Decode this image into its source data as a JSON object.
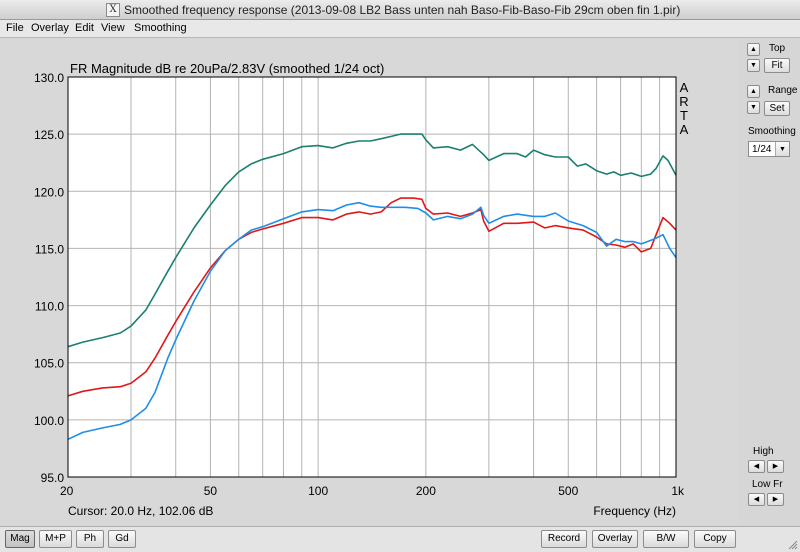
{
  "window": {
    "title": "Smoothed frequency response (2013-09-08 LB2 Bass unten nah Baso-Fib-Baso-Fib 29cm oben fin 1.pir)"
  },
  "menu": {
    "file": "File",
    "overlay": "Overlay",
    "edit": "Edit",
    "view": "View",
    "smoothing": "Smoothing"
  },
  "chart": {
    "title": "FR Magnitude dB re 20uPa/2.83V (smoothed 1/24 oct)",
    "watermark": [
      "A",
      "R",
      "T",
      "A"
    ],
    "cursor": "Cursor: 20.0 Hz, 102.06 dB",
    "xlabel": "Frequency (Hz)"
  },
  "chart_data": {
    "type": "line",
    "xscale": "log",
    "xlim": [
      20,
      1000
    ],
    "ylim": [
      95,
      130
    ],
    "xticks": [
      20,
      50,
      100,
      200,
      500,
      1000
    ],
    "xtick_labels": [
      "20",
      "50",
      "100",
      "200",
      "500",
      "1k"
    ],
    "yticks": [
      95,
      100,
      105,
      110,
      115,
      120,
      125,
      130
    ],
    "ytick_labels": [
      "95.0",
      "100.0",
      "105.0",
      "110.0",
      "115.0",
      "120.0",
      "125.0",
      "130.0"
    ],
    "grid": true,
    "background": "#ffffff",
    "series": [
      {
        "color": "#1a8070",
        "points": [
          [
            20,
            106.4
          ],
          [
            22,
            106.8
          ],
          [
            25,
            107.2
          ],
          [
            28,
            107.6
          ],
          [
            30,
            108.2
          ],
          [
            33,
            109.6
          ],
          [
            35,
            111.0
          ],
          [
            38,
            113.0
          ],
          [
            40,
            114.2
          ],
          [
            45,
            116.8
          ],
          [
            50,
            118.8
          ],
          [
            55,
            120.5
          ],
          [
            60,
            121.7
          ],
          [
            65,
            122.4
          ],
          [
            70,
            122.8
          ],
          [
            80,
            123.3
          ],
          [
            90,
            123.9
          ],
          [
            100,
            124.0
          ],
          [
            110,
            123.8
          ],
          [
            120,
            124.2
          ],
          [
            130,
            124.4
          ],
          [
            140,
            124.4
          ],
          [
            150,
            124.6
          ],
          [
            160,
            124.8
          ],
          [
            170,
            125.0
          ],
          [
            180,
            125.0
          ],
          [
            195,
            125.0
          ],
          [
            200,
            124.5
          ],
          [
            210,
            123.8
          ],
          [
            230,
            123.9
          ],
          [
            250,
            123.6
          ],
          [
            270,
            124.1
          ],
          [
            290,
            123.2
          ],
          [
            300,
            122.7
          ],
          [
            330,
            123.3
          ],
          [
            360,
            123.3
          ],
          [
            380,
            123.0
          ],
          [
            400,
            123.6
          ],
          [
            430,
            123.2
          ],
          [
            460,
            123.0
          ],
          [
            500,
            123.0
          ],
          [
            530,
            122.2
          ],
          [
            560,
            122.4
          ],
          [
            600,
            121.8
          ],
          [
            640,
            121.5
          ],
          [
            670,
            121.7
          ],
          [
            700,
            121.4
          ],
          [
            750,
            121.6
          ],
          [
            800,
            121.3
          ],
          [
            850,
            121.5
          ],
          [
            880,
            122.0
          ],
          [
            920,
            123.1
          ],
          [
            950,
            122.7
          ],
          [
            1000,
            121.4
          ]
        ]
      },
      {
        "color": "#e01818",
        "points": [
          [
            20,
            102.1
          ],
          [
            22,
            102.5
          ],
          [
            25,
            102.8
          ],
          [
            28,
            102.9
          ],
          [
            30,
            103.2
          ],
          [
            33,
            104.2
          ],
          [
            35,
            105.4
          ],
          [
            38,
            107.4
          ],
          [
            40,
            108.6
          ],
          [
            45,
            111.2
          ],
          [
            50,
            113.3
          ],
          [
            55,
            114.8
          ],
          [
            60,
            115.8
          ],
          [
            65,
            116.4
          ],
          [
            70,
            116.7
          ],
          [
            80,
            117.2
          ],
          [
            90,
            117.7
          ],
          [
            100,
            117.7
          ],
          [
            110,
            117.5
          ],
          [
            120,
            118.0
          ],
          [
            130,
            118.2
          ],
          [
            140,
            118.0
          ],
          [
            150,
            118.2
          ],
          [
            160,
            119.0
          ],
          [
            170,
            119.4
          ],
          [
            185,
            119.4
          ],
          [
            195,
            119.3
          ],
          [
            200,
            118.5
          ],
          [
            210,
            118.0
          ],
          [
            230,
            118.1
          ],
          [
            250,
            117.8
          ],
          [
            270,
            118.1
          ],
          [
            285,
            118.4
          ],
          [
            290,
            117.4
          ],
          [
            300,
            116.5
          ],
          [
            330,
            117.2
          ],
          [
            360,
            117.2
          ],
          [
            400,
            117.3
          ],
          [
            430,
            116.8
          ],
          [
            460,
            117.0
          ],
          [
            500,
            116.8
          ],
          [
            550,
            116.6
          ],
          [
            600,
            116.0
          ],
          [
            640,
            115.4
          ],
          [
            680,
            115.3
          ],
          [
            720,
            115.1
          ],
          [
            760,
            115.4
          ],
          [
            800,
            114.7
          ],
          [
            850,
            115.0
          ],
          [
            880,
            116.2
          ],
          [
            920,
            117.7
          ],
          [
            960,
            117.2
          ],
          [
            1000,
            116.6
          ]
        ]
      },
      {
        "color": "#1e8ee8",
        "points": [
          [
            20,
            98.3
          ],
          [
            22,
            98.9
          ],
          [
            25,
            99.3
          ],
          [
            28,
            99.6
          ],
          [
            30,
            100.0
          ],
          [
            33,
            101.0
          ],
          [
            35,
            102.4
          ],
          [
            38,
            105.4
          ],
          [
            40,
            107.0
          ],
          [
            45,
            110.4
          ],
          [
            50,
            113.0
          ],
          [
            55,
            114.8
          ],
          [
            60,
            115.8
          ],
          [
            65,
            116.6
          ],
          [
            70,
            116.9
          ],
          [
            80,
            117.6
          ],
          [
            90,
            118.2
          ],
          [
            100,
            118.4
          ],
          [
            110,
            118.3
          ],
          [
            120,
            118.8
          ],
          [
            130,
            119.0
          ],
          [
            140,
            118.7
          ],
          [
            150,
            118.6
          ],
          [
            160,
            118.6
          ],
          [
            175,
            118.6
          ],
          [
            190,
            118.5
          ],
          [
            200,
            118.1
          ],
          [
            210,
            117.5
          ],
          [
            230,
            117.8
          ],
          [
            250,
            117.6
          ],
          [
            270,
            118.0
          ],
          [
            285,
            118.6
          ],
          [
            290,
            117.9
          ],
          [
            300,
            117.2
          ],
          [
            330,
            117.8
          ],
          [
            360,
            118.0
          ],
          [
            400,
            117.8
          ],
          [
            430,
            117.8
          ],
          [
            460,
            118.1
          ],
          [
            500,
            117.4
          ],
          [
            550,
            117.0
          ],
          [
            600,
            116.4
          ],
          [
            640,
            115.2
          ],
          [
            680,
            115.8
          ],
          [
            720,
            115.6
          ],
          [
            760,
            115.6
          ],
          [
            800,
            115.4
          ],
          [
            850,
            115.7
          ],
          [
            880,
            115.9
          ],
          [
            920,
            116.2
          ],
          [
            960,
            115.0
          ],
          [
            1000,
            114.2
          ]
        ]
      }
    ]
  },
  "side": {
    "top_label": "Top",
    "fit_label": "Fit",
    "range_label": "Range",
    "set_label": "Set",
    "smoothing_label": "Smoothing",
    "smoothing_value": "1/24",
    "high_label": "High",
    "lowfr_label": "Low Fr"
  },
  "bottom": {
    "mag": "Mag",
    "mp": "M+P",
    "ph": "Ph",
    "gd": "Gd",
    "record": "Record",
    "overlay": "Overlay",
    "bw": "B/W",
    "copy": "Copy"
  }
}
